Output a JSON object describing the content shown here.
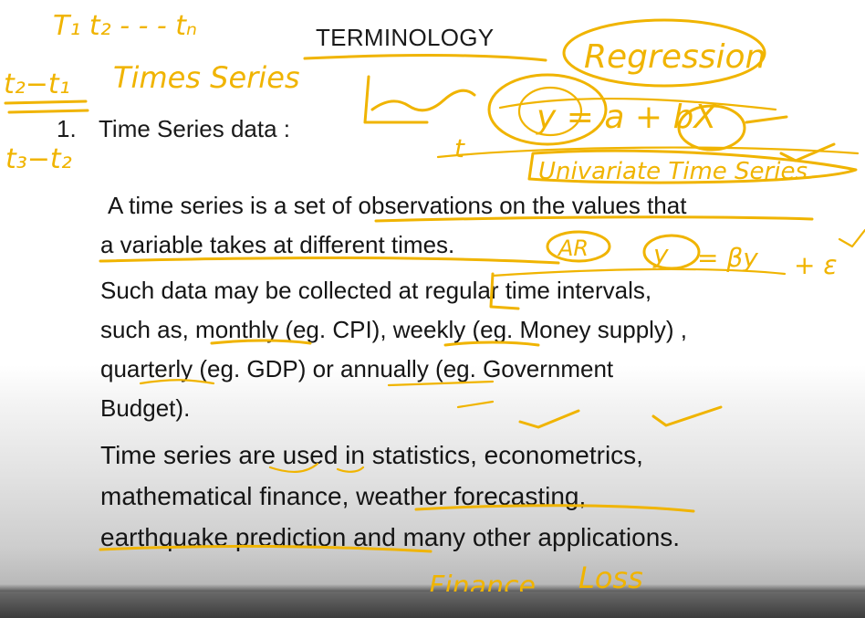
{
  "slide": {
    "title": "TERMINOLOGY",
    "section_number": "1.",
    "section_heading": "Time Series data :",
    "paragraph1": [
      "A time series is a set of observations on the values that",
      "a variable takes at different times."
    ],
    "paragraph2": [
      "Such data may be collected at regular time intervals,",
      "such as, monthly (eg. CPI), weekly (eg. Money supply) ,",
      "quarterly (eg. GDP) or annually (eg. Government",
      "Budget)."
    ],
    "paragraph3": [
      "Time series are used in statistics, econometrics,",
      "mathematical finance, weather forecasting,",
      "earthquake prediction and many other applications."
    ]
  },
  "annotations": {
    "ink_color": "#f0b400",
    "top_left_sequence": "T₁ t₂ - - - tₙ",
    "diff_1": "t₂−t₁",
    "times_series_note": "Times Series",
    "diff_2": "t₃−t₂",
    "regression_note": "Regression",
    "equation": "y = a + bX",
    "time_axis_label": "t",
    "univariate_note": "Univariate Time Series",
    "ar_note": "AR",
    "ar_equation_lhs": "y",
    "ar_equation_rhs": "= βy",
    "epsilon": "+ ε",
    "finance_note": "Finance",
    "loss_note": "Loss"
  }
}
